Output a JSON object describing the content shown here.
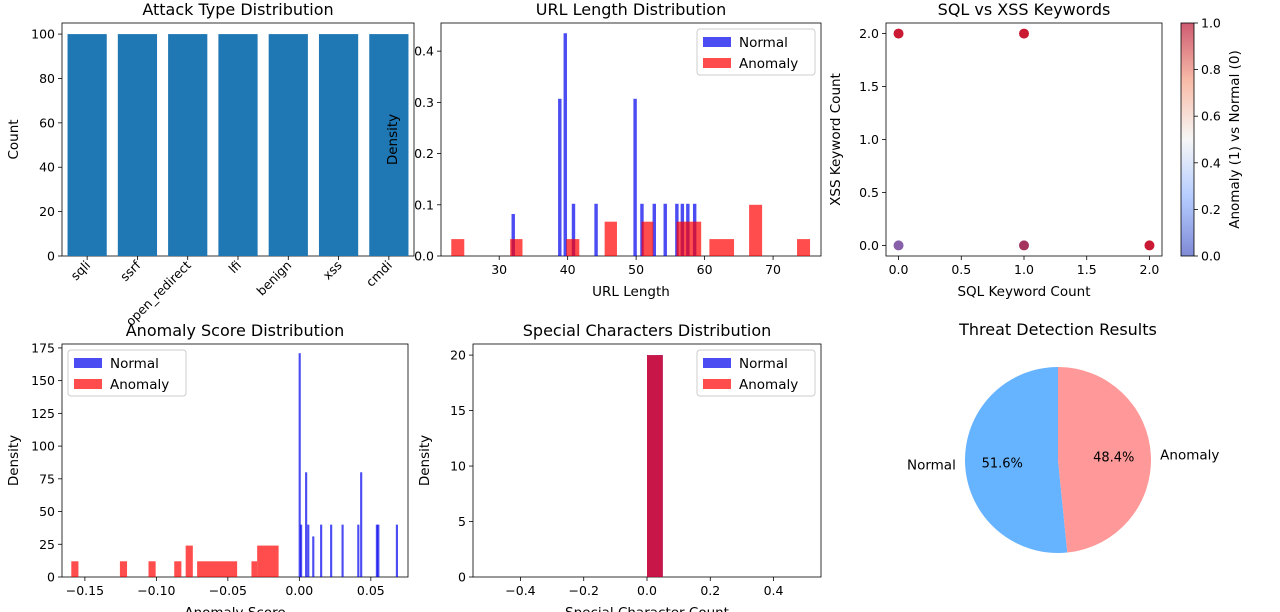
{
  "chart_data": [
    {
      "id": "attack",
      "type": "bar",
      "title": "Attack Type Distribution",
      "xlabel": "",
      "ylabel": "Count",
      "categories": [
        "sqli",
        "ssrf",
        "open_redirect",
        "lfi",
        "benign",
        "xss",
        "cmdi"
      ],
      "values": [
        100,
        100,
        100,
        100,
        100,
        100,
        100
      ],
      "ylim": [
        0,
        105
      ],
      "yticks": [
        0,
        20,
        40,
        60,
        80,
        100
      ],
      "color": "#1f77b4"
    },
    {
      "id": "urllen",
      "type": "histogram",
      "title": "URL Length Distribution",
      "xlabel": "URL Length",
      "ylabel": "Density",
      "xlim": [
        21.5,
        77
      ],
      "ylim": [
        0,
        0.455
      ],
      "xticks": [
        30,
        40,
        50,
        60,
        70
      ],
      "yticks": [
        0.0,
        0.1,
        0.2,
        0.3,
        0.4
      ],
      "legend_position": "upper-right",
      "series": [
        {
          "name": "Normal",
          "color": "#0000ee",
          "bins": [
            [
              31.8,
              32.3,
              0.082
            ],
            [
              38.6,
              39.1,
              0.307
            ],
            [
              39.4,
              39.9,
              0.435
            ],
            [
              40.6,
              41.1,
              0.102
            ],
            [
              43.9,
              44.4,
              0.102
            ],
            [
              49.6,
              50.1,
              0.307
            ],
            [
              50.6,
              51.1,
              0.102
            ],
            [
              52.4,
              52.9,
              0.102
            ],
            [
              54.0,
              54.5,
              0.102
            ],
            [
              55.7,
              56.2,
              0.102
            ],
            [
              56.5,
              57.0,
              0.102
            ],
            [
              57.3,
              57.8,
              0.102
            ],
            [
              58.3,
              58.8,
              0.102
            ]
          ]
        },
        {
          "name": "Anomaly",
          "color": "#ff0000",
          "bins": [
            [
              23.0,
              24.9,
              0.033
            ],
            [
              31.6,
              33.4,
              0.033
            ],
            [
              39.8,
              41.7,
              0.033
            ],
            [
              45.4,
              47.2,
              0.067
            ],
            [
              50.8,
              52.5,
              0.067
            ],
            [
              55.9,
              59.5,
              0.067
            ],
            [
              60.7,
              64.3,
              0.033
            ],
            [
              66.5,
              68.4,
              0.1
            ],
            [
              73.5,
              75.4,
              0.033
            ]
          ]
        }
      ]
    },
    {
      "id": "sqlxss",
      "type": "scatter",
      "title": "SQL vs XSS Keywords",
      "xlabel": "SQL Keyword Count",
      "ylabel": "XSS Keyword Count",
      "xlim": [
        -0.1,
        2.1
      ],
      "ylim": [
        -0.1,
        2.1
      ],
      "xticks": [
        0.0,
        0.5,
        1.0,
        1.5,
        2.0
      ],
      "yticks": [
        0.0,
        0.5,
        1.0,
        1.5,
        2.0
      ],
      "points": [
        {
          "x": 0,
          "y": 2,
          "color": "#c4001c"
        },
        {
          "x": 1,
          "y": 2,
          "color": "#c4001c"
        },
        {
          "x": 0,
          "y": 0,
          "color": "#7a4fa0"
        },
        {
          "x": 1,
          "y": 0,
          "color": "#9a1e4c"
        },
        {
          "x": 2,
          "y": 0,
          "color": "#c4001c"
        }
      ],
      "colorbar": {
        "label": "Anomaly (1) vs Normal (0)",
        "ticks": [
          0.0,
          0.2,
          0.4,
          0.6,
          0.8,
          1.0
        ]
      }
    },
    {
      "id": "score",
      "type": "histogram",
      "title": "Anomaly Score Distribution",
      "xlabel": "Anomaly Score",
      "ylabel": "Density",
      "xlim": [
        -0.166,
        0.076
      ],
      "ylim": [
        0,
        178
      ],
      "xticks": [
        -0.15,
        -0.1,
        -0.05,
        0.0,
        0.05
      ],
      "yticks": [
        0,
        25,
        50,
        75,
        100,
        125,
        150,
        175
      ],
      "legend_position": "upper-left",
      "series": [
        {
          "name": "Normal",
          "color": "#0000ee",
          "bins": [
            [
              -0.0005,
              0.001,
              171
            ],
            [
              0.0005,
              0.002,
              40
            ],
            [
              0.004,
              0.0055,
              80
            ],
            [
              0.0055,
              0.007,
              40
            ],
            [
              0.009,
              0.0105,
              31
            ],
            [
              0.0145,
              0.016,
              40
            ],
            [
              0.0215,
              0.023,
              40
            ],
            [
              0.0295,
              0.031,
              40
            ],
            [
              0.0405,
              0.042,
              40
            ],
            [
              0.0425,
              0.044,
              80
            ],
            [
              0.0535,
              0.055,
              40
            ],
            [
              0.0545,
              0.056,
              40
            ],
            [
              0.0675,
              0.069,
              40
            ]
          ]
        },
        {
          "name": "Anomaly",
          "color": "#ff0000",
          "bins": [
            [
              -0.1595,
              -0.1545,
              12
            ],
            [
              -0.1255,
              -0.1205,
              12
            ],
            [
              -0.1055,
              -0.1005,
              12
            ],
            [
              -0.0875,
              -0.0825,
              12
            ],
            [
              -0.0795,
              -0.0745,
              24
            ],
            [
              -0.0715,
              -0.0625,
              12
            ],
            [
              -0.0625,
              -0.0435,
              12
            ],
            [
              -0.0335,
              -0.0295,
              12
            ],
            [
              -0.0295,
              -0.0145,
              24
            ]
          ]
        }
      ]
    },
    {
      "id": "special",
      "type": "histogram",
      "title": "Special Characters Distribution",
      "xlabel": "Special Character Count",
      "ylabel": "Density",
      "xlim": [
        -0.55,
        0.55
      ],
      "ylim": [
        0,
        21
      ],
      "xticks": [
        -0.4,
        -0.2,
        0.0,
        0.2,
        0.4
      ],
      "yticks": [
        0,
        5,
        10,
        15,
        20
      ],
      "legend_position": "upper-right",
      "series": [
        {
          "name": "Normal",
          "color": "#0000ee",
          "bins": [
            [
              0.0,
              0.05,
              20
            ]
          ]
        },
        {
          "name": "Anomaly",
          "color": "#ff0000",
          "bins": [
            [
              0.0,
              0.05,
              20
            ]
          ]
        }
      ]
    },
    {
      "id": "pie",
      "type": "pie",
      "title": "Threat Detection Results",
      "slices": [
        {
          "label": "Normal",
          "value": 51.6,
          "pct": "51.6%",
          "color": "#66b3ff"
        },
        {
          "label": "Anomaly",
          "value": 48.4,
          "pct": "48.4%",
          "color": "#ff9999"
        }
      ]
    }
  ]
}
